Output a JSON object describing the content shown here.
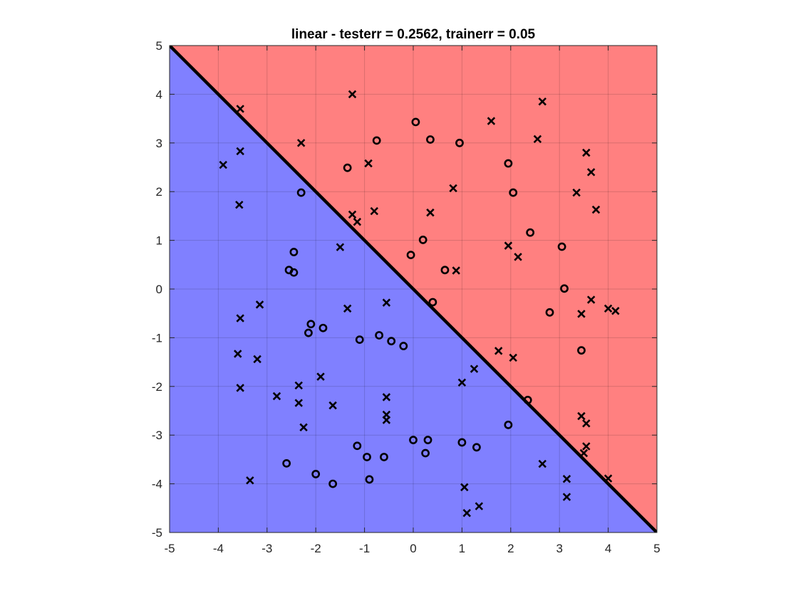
{
  "chart_data": {
    "type": "scatter",
    "title": "linear - testerr = 0.2562, trainerr = 0.05",
    "xlabel": "",
    "ylabel": "",
    "xlim": [
      -5,
      5
    ],
    "ylim": [
      -5,
      5
    ],
    "xticks": [
      "-5",
      "-4",
      "-3",
      "-2",
      "-1",
      "0",
      "1",
      "2",
      "3",
      "4",
      "5"
    ],
    "yticks": [
      "5",
      "4",
      "3",
      "2",
      "1",
      "0",
      "-1",
      "-2",
      "-3",
      "-4",
      "-5"
    ],
    "grid": true,
    "decision_boundary": {
      "x": [
        -5,
        5
      ],
      "y": [
        5,
        -5
      ]
    },
    "regions": [
      {
        "label": "above boundary",
        "color": "#ff8080"
      },
      {
        "label": "below boundary",
        "color": "#8080ff"
      }
    ],
    "series": [
      {
        "marker": "x",
        "points": [
          [
            -3.55,
            3.7
          ],
          [
            -1.25,
            4.0
          ],
          [
            2.65,
            3.85
          ],
          [
            1.6,
            3.45
          ],
          [
            2.55,
            3.08
          ],
          [
            -2.3,
            3.0
          ],
          [
            -3.9,
            2.55
          ],
          [
            -3.55,
            2.83
          ],
          [
            -0.92,
            2.58
          ],
          [
            3.55,
            2.8
          ],
          [
            3.65,
            2.4
          ],
          [
            0.82,
            2.07
          ],
          [
            3.35,
            1.98
          ],
          [
            -3.57,
            1.73
          ],
          [
            3.75,
            1.63
          ],
          [
            -0.8,
            1.6
          ],
          [
            -1.25,
            1.53
          ],
          [
            -1.15,
            1.38
          ],
          [
            0.35,
            1.57
          ],
          [
            -1.5,
            0.86
          ],
          [
            1.95,
            0.89
          ],
          [
            2.15,
            0.66
          ],
          [
            0.88,
            0.38
          ],
          [
            -3.55,
            -0.6
          ],
          [
            -3.15,
            -0.32
          ],
          [
            -1.35,
            -0.4
          ],
          [
            -0.55,
            -0.28
          ],
          [
            3.45,
            -0.51
          ],
          [
            3.65,
            -0.22
          ],
          [
            4.0,
            -0.4
          ],
          [
            4.15,
            -0.45
          ],
          [
            -3.6,
            -1.33
          ],
          [
            -3.2,
            -1.44
          ],
          [
            -3.55,
            -2.03
          ],
          [
            -2.8,
            -2.2
          ],
          [
            -2.35,
            -1.98
          ],
          [
            -2.35,
            -2.34
          ],
          [
            -2.25,
            -2.84
          ],
          [
            -1.9,
            -1.8
          ],
          [
            -1.65,
            -2.39
          ],
          [
            -0.55,
            -2.22
          ],
          [
            -0.55,
            -2.69
          ],
          [
            -0.55,
            -2.58
          ],
          [
            1.25,
            -1.64
          ],
          [
            1.0,
            -1.92
          ],
          [
            1.75,
            -1.27
          ],
          [
            2.05,
            -1.41
          ],
          [
            2.65,
            -3.59
          ],
          [
            3.45,
            -2.61
          ],
          [
            3.55,
            -2.76
          ],
          [
            3.55,
            -3.23
          ],
          [
            3.5,
            -3.37
          ],
          [
            3.15,
            -3.9
          ],
          [
            3.15,
            -4.27
          ],
          [
            4.0,
            -3.89
          ],
          [
            1.05,
            -4.07
          ],
          [
            1.35,
            -4.46
          ],
          [
            1.1,
            -4.6
          ],
          [
            -3.35,
            -3.93
          ]
        ]
      },
      {
        "marker": "o",
        "points": [
          [
            0.05,
            3.43
          ],
          [
            0.35,
            3.07
          ],
          [
            -0.75,
            3.05
          ],
          [
            0.95,
            3.0
          ],
          [
            -1.35,
            2.49
          ],
          [
            1.95,
            2.58
          ],
          [
            2.05,
            1.98
          ],
          [
            -2.3,
            1.98
          ],
          [
            0.2,
            1.01
          ],
          [
            2.4,
            1.16
          ],
          [
            3.05,
            0.87
          ],
          [
            -0.05,
            0.7
          ],
          [
            0.65,
            0.39
          ],
          [
            -2.45,
            0.76
          ],
          [
            -2.55,
            0.39
          ],
          [
            -2.45,
            0.34
          ],
          [
            3.1,
            0.01
          ],
          [
            0.4,
            -0.27
          ],
          [
            2.8,
            -0.48
          ],
          [
            3.45,
            -1.26
          ],
          [
            -2.1,
            -0.72
          ],
          [
            -2.15,
            -0.9
          ],
          [
            -1.85,
            -0.8
          ],
          [
            -1.1,
            -1.04
          ],
          [
            -0.7,
            -0.95
          ],
          [
            -0.45,
            -1.07
          ],
          [
            -0.2,
            -1.17
          ],
          [
            2.35,
            -2.28
          ],
          [
            1.95,
            -2.79
          ],
          [
            0.0,
            -3.1
          ],
          [
            0.3,
            -3.1
          ],
          [
            0.25,
            -3.37
          ],
          [
            1.0,
            -3.15
          ],
          [
            1.3,
            -3.25
          ],
          [
            -1.15,
            -3.22
          ],
          [
            -0.95,
            -3.45
          ],
          [
            -0.6,
            -3.45
          ],
          [
            -2.6,
            -3.58
          ],
          [
            -2.0,
            -3.8
          ],
          [
            -0.9,
            -3.91
          ],
          [
            -1.65,
            -4.0
          ]
        ]
      }
    ]
  }
}
